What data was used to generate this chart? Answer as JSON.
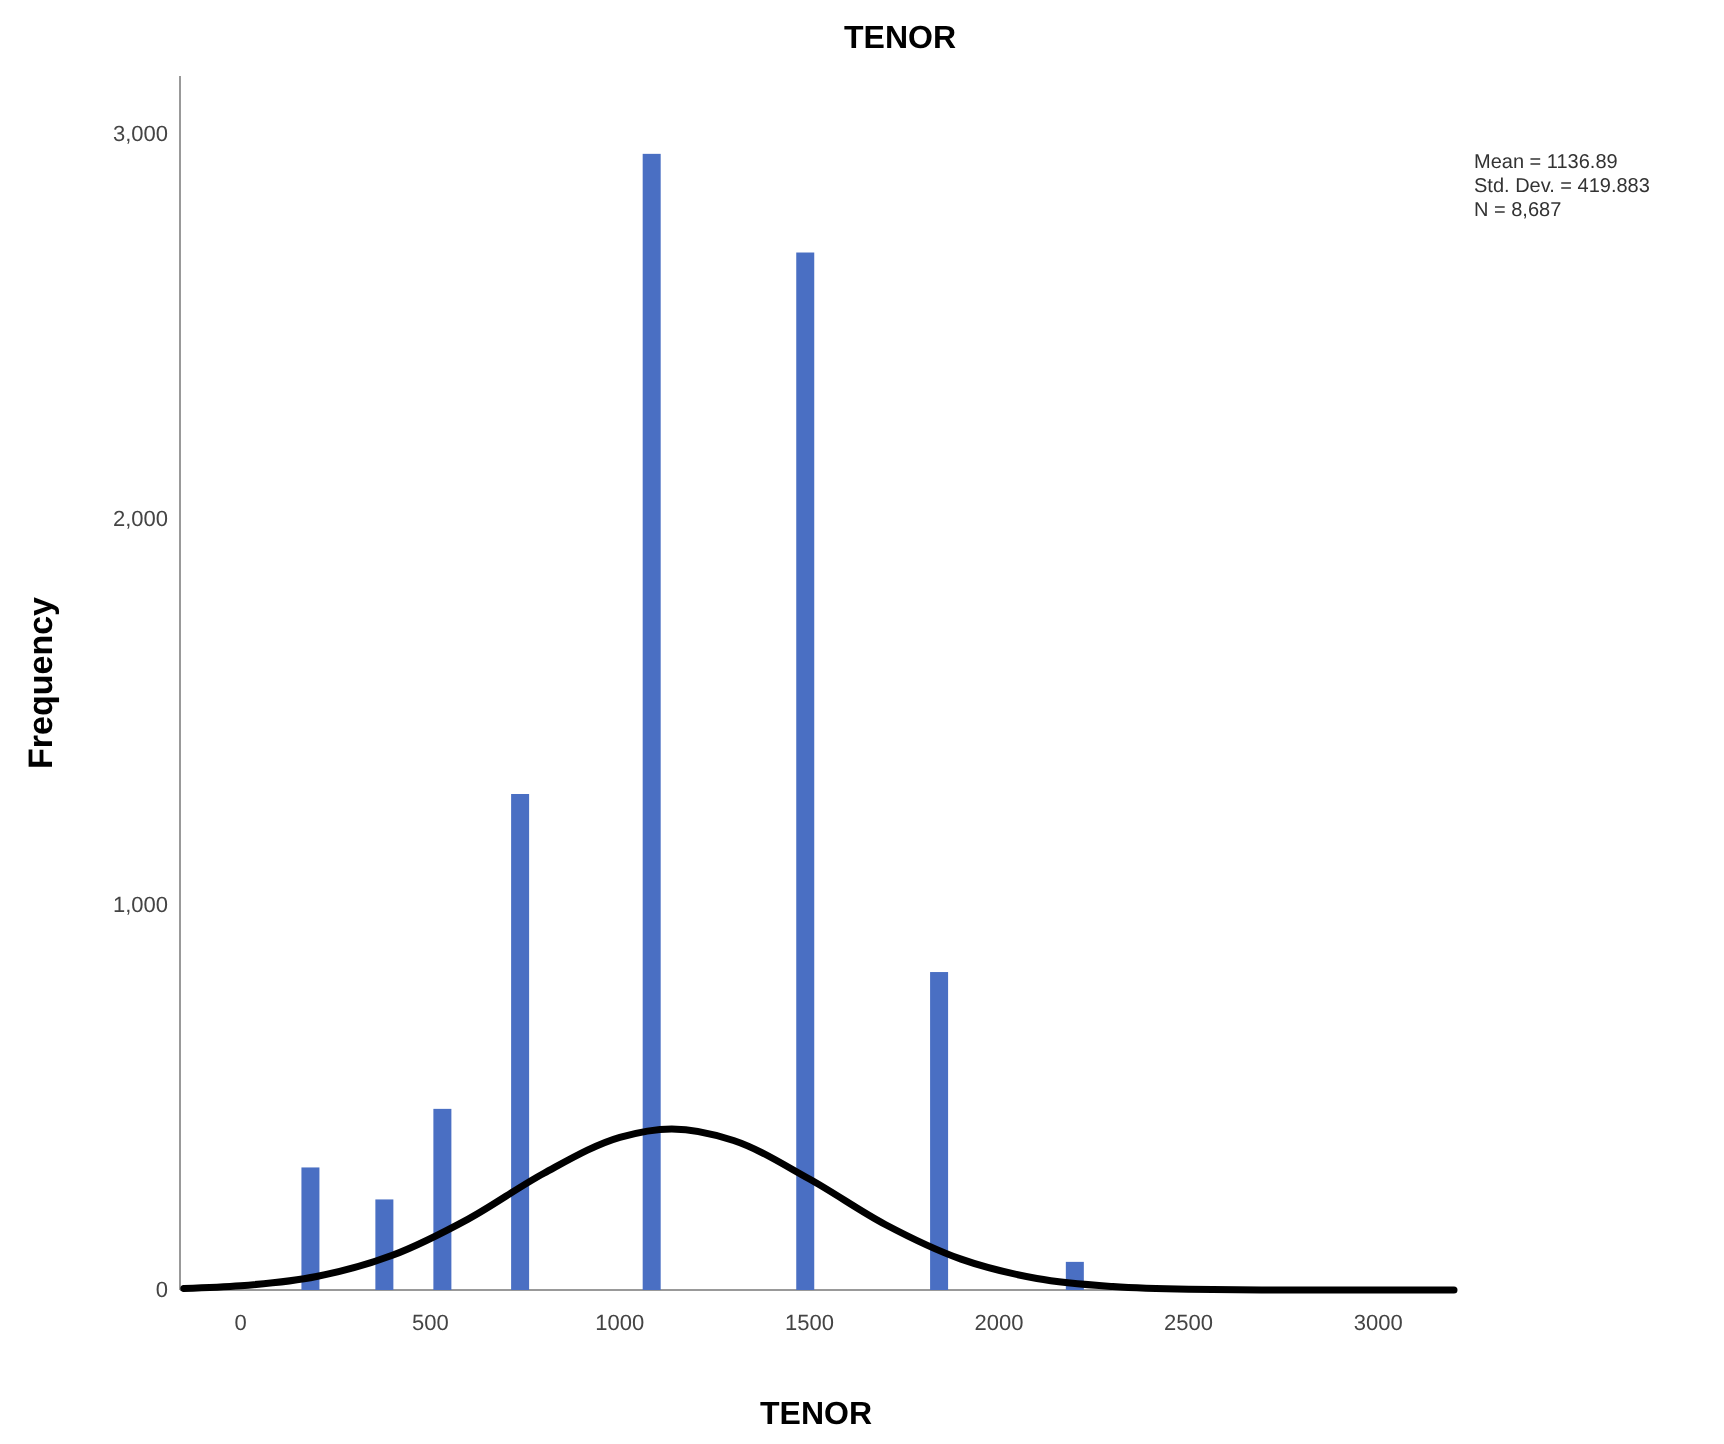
{
  "chart_data": {
    "type": "bar",
    "title": "TENOR",
    "xlabel": "TENOR",
    "ylabel": "Frequency",
    "annotations": [
      "Mean = 1136.89\nStd. Dev. = 419.883\nN = 8,687"
    ],
    "xlim": [
      -160,
      3200
    ],
    "xticks": [
      0,
      500,
      1000,
      1500,
      2000,
      2500,
      3000
    ],
    "ylim": [
      0,
      3150
    ],
    "yticks": [
      0,
      {
        "value": 1000,
        "label": "1,000"
      },
      {
        "value": 2000,
        "label": "2,000"
      },
      {
        "value": 3000,
        "label": "3,000"
      }
    ],
    "grid": false,
    "series": [
      {
        "color": "#4a6fc3",
        "x": [
          184,
          379,
          532,
          737,
          1084,
          1489,
          1842,
          2200
        ],
        "values": [
          318,
          235,
          470,
          1287,
          2948,
          2692,
          825,
          73
        ]
      },
      {
        "type": "line",
        "color": "#000000",
        "x": [
          -150,
          0,
          200,
          400,
          600,
          800,
          1000,
          1137,
          1300,
          1500,
          1700,
          1900,
          2100,
          2300,
          2500,
          2800,
          3200
        ],
        "values": [
          4,
          11,
          35,
          90,
          184,
          303,
          396,
          418,
          388,
          288,
          170,
          80,
          30,
          9,
          2,
          0,
          0
        ]
      }
    ]
  }
}
